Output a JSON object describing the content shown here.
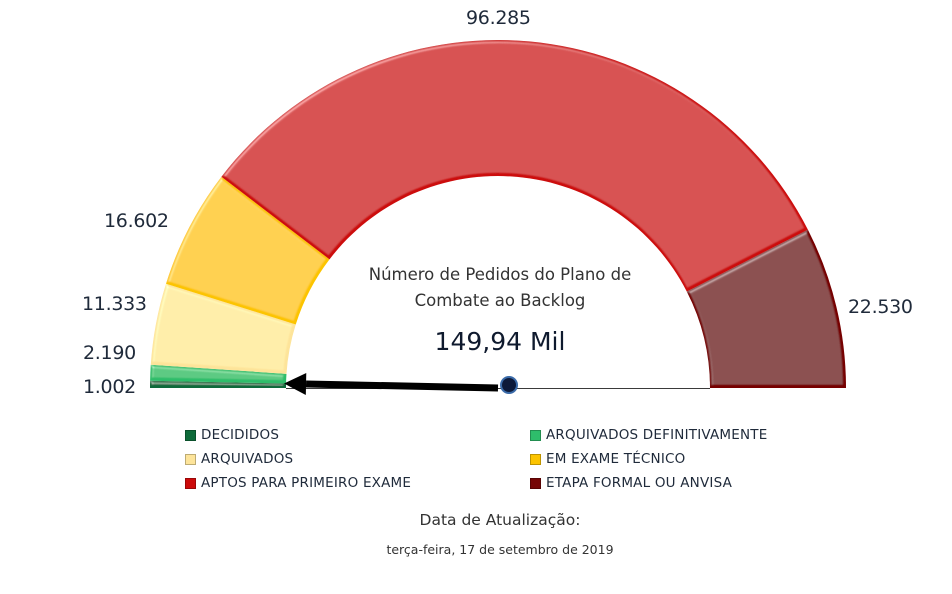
{
  "chart_data": {
    "type": "gauge",
    "title": "Número de Pedidos do Plano de Combate ao Backlog",
    "total_display": "149,94 Mil",
    "total": 149942,
    "categories": [
      "DECIDIDOS",
      "ARQUIVADOS DEFINITIVAMENTE",
      "ARQUIVADOS",
      "EM EXAME TÉCNICO",
      "APTOS PARA PRIMEIRO EXAME",
      "ETAPA FORMAL OU ANVISA"
    ],
    "values": [
      1002,
      2190,
      11333,
      16602,
      96285,
      22530
    ],
    "value_labels": [
      "1.002",
      "2.190",
      "11.333",
      "16.602",
      "96.285",
      "22.530"
    ],
    "colors": [
      "#0e6b3a",
      "#2ebd6b",
      "#fde49a",
      "#fcc400",
      "#cc0a0a",
      "#760606"
    ],
    "needle_value": 1002,
    "legend_position": "bottom"
  },
  "labels": {
    "decididos": "1.002",
    "arquivados_definitivamente": "2.190",
    "arquivados": "11.333",
    "em_exame_tecnico": "16.602",
    "aptos": "96.285",
    "etapa_formal": "22.530"
  },
  "center": {
    "title": "Número de Pedidos do Plano de Combate ao Backlog",
    "value": "149,94 Mil"
  },
  "legend": [
    {
      "label": "DECIDIDOS",
      "color": "#0e6b3a"
    },
    {
      "label": "ARQUIVADOS DEFINITIVAMENTE",
      "color": "#2ebd6b"
    },
    {
      "label": "ARQUIVADOS",
      "color": "#fde49a"
    },
    {
      "label": "EM EXAME TÉCNICO",
      "color": "#fcc400"
    },
    {
      "label": "APTOS PARA PRIMEIRO EXAME",
      "color": "#cc0a0a"
    },
    {
      "label": "ETAPA FORMAL OU ANVISA",
      "color": "#760606"
    }
  ],
  "footer": {
    "date_title": "Data de Atualização:",
    "date_value": "terça-feira, 17 de setembro de 2019"
  }
}
